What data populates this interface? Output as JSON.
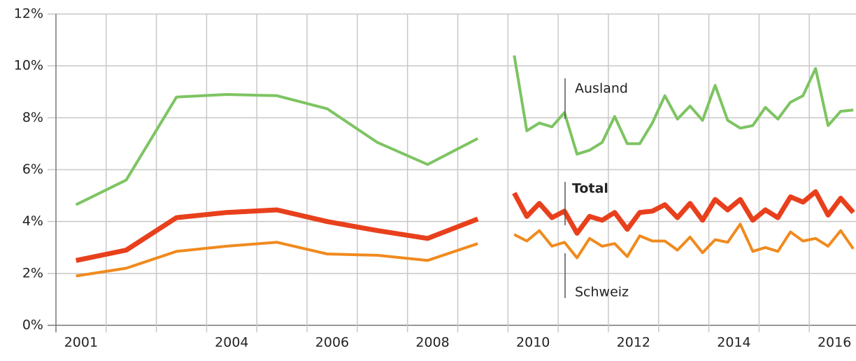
{
  "chart_data": {
    "type": "line",
    "x": [
      2001.4,
      2002.4,
      2003.4,
      2004.4,
      2005.4,
      2006.4,
      2007.4,
      2008.4,
      2009.4,
      null,
      2010.125,
      2010.375,
      2010.625,
      2010.875,
      2011.125,
      2011.375,
      2011.625,
      2011.875,
      2012.125,
      2012.375,
      2012.625,
      2012.875,
      2013.125,
      2013.375,
      2013.625,
      2013.875,
      2014.125,
      2014.375,
      2014.625,
      2014.875,
      2015.125,
      2015.375,
      2015.625,
      2015.875,
      2016.125,
      2016.375,
      2016.625,
      2016.875
    ],
    "series": [
      {
        "name": "Ausland",
        "color": "#7dc462",
        "width": 4,
        "values": [
          4.65,
          5.6,
          8.8,
          8.9,
          8.85,
          8.35,
          7.05,
          6.2,
          7.2,
          null,
          10.4,
          7.5,
          7.8,
          7.65,
          8.2,
          6.6,
          6.75,
          7.05,
          8.05,
          7.0,
          7.0,
          7.8,
          8.85,
          7.95,
          8.45,
          7.9,
          9.25,
          7.9,
          7.6,
          7.7,
          8.4,
          7.95,
          8.6,
          8.85,
          9.9,
          7.7,
          8.25,
          8.3
        ]
      },
      {
        "name": "Total",
        "color": "#e8401c",
        "width": 7,
        "values": [
          2.5,
          2.9,
          4.15,
          4.35,
          4.45,
          4.0,
          3.65,
          3.35,
          4.1,
          null,
          5.1,
          4.2,
          4.7,
          4.15,
          4.4,
          3.55,
          4.2,
          4.05,
          4.35,
          3.7,
          4.35,
          4.4,
          4.65,
          4.15,
          4.7,
          4.05,
          4.85,
          4.45,
          4.85,
          4.05,
          4.45,
          4.15,
          4.95,
          4.75,
          5.15,
          4.25,
          4.9,
          4.35
        ]
      },
      {
        "name": "Schweiz",
        "color": "#f08a1e",
        "width": 4,
        "values": [
          1.9,
          2.2,
          2.85,
          3.05,
          3.2,
          2.75,
          2.7,
          2.5,
          3.15,
          null,
          3.5,
          3.25,
          3.65,
          3.05,
          3.2,
          2.6,
          3.35,
          3.05,
          3.15,
          2.65,
          3.45,
          3.25,
          3.25,
          2.9,
          3.4,
          2.8,
          3.3,
          3.2,
          3.9,
          2.85,
          3.0,
          2.85,
          3.6,
          3.25,
          3.35,
          3.05,
          3.65,
          2.95
        ]
      }
    ],
    "xlim": [
      2001,
      2016.93
    ],
    "ylim": [
      0,
      12
    ],
    "xticks": [
      {
        "value": 2001.5,
        "label": "2001"
      },
      {
        "value": 2004.5,
        "label": "2004"
      },
      {
        "value": 2006.5,
        "label": "2006"
      },
      {
        "value": 2008.5,
        "label": "2008"
      },
      {
        "value": 2010.5,
        "label": "2010"
      },
      {
        "value": 2012.5,
        "label": "2012"
      },
      {
        "value": 2014.5,
        "label": "2014"
      },
      {
        "value": 2016.5,
        "label": "2016"
      }
    ],
    "xgrid": [
      2001,
      2002,
      2003,
      2004,
      2005,
      2006,
      2007,
      2008,
      2009,
      2010,
      2011,
      2012,
      2013,
      2014,
      2015,
      2016
    ],
    "yticks": [
      {
        "value": 0,
        "label": "0%"
      },
      {
        "value": 2,
        "label": "2%"
      },
      {
        "value": 4,
        "label": "4%"
      },
      {
        "value": 6,
        "label": "6%"
      },
      {
        "value": 8,
        "label": "8%"
      },
      {
        "value": 10,
        "label": "10%"
      },
      {
        "value": 12,
        "label": "12%"
      }
    ],
    "grid": true
  }
}
